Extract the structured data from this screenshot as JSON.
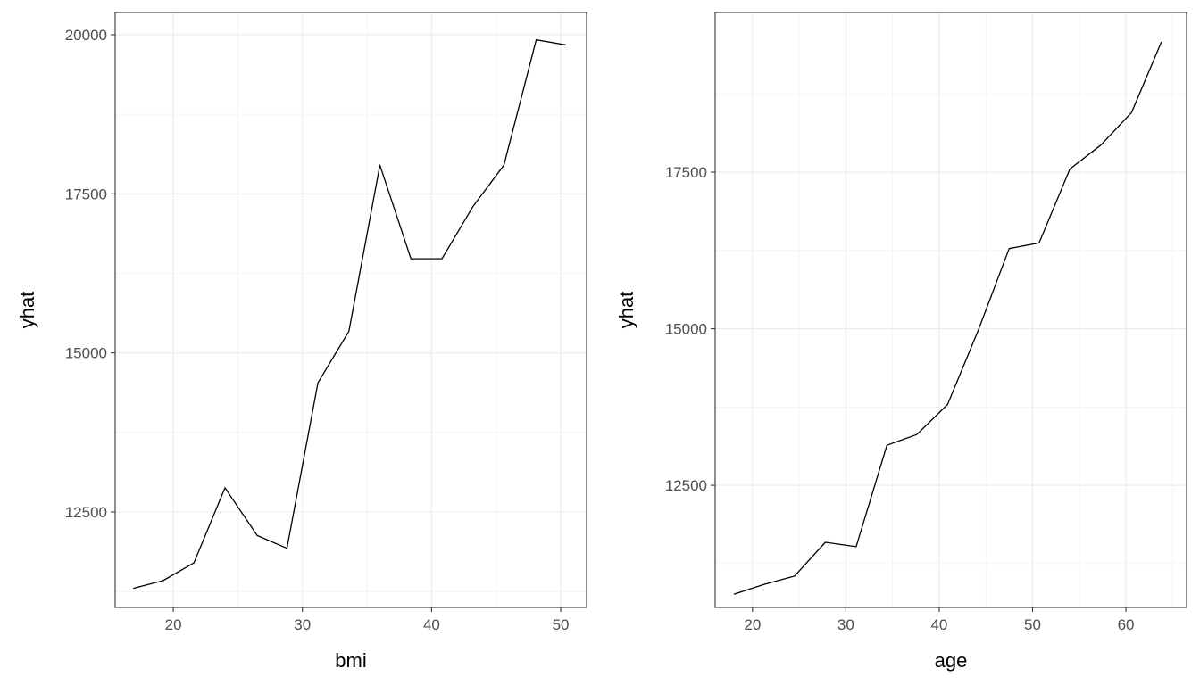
{
  "chart_data": [
    {
      "type": "line",
      "xlabel": "bmi",
      "ylabel": "yhat",
      "xlim": [
        15.5,
        52
      ],
      "ylim": [
        11000,
        20350
      ],
      "x_major_ticks": [
        20,
        30,
        40,
        50
      ],
      "y_major_ticks": [
        12500,
        15000,
        17500,
        20000
      ],
      "grid": true,
      "series": [
        {
          "x": [
            16.9,
            19.2,
            21.6,
            24.0,
            26.5,
            28.8,
            31.2,
            33.6,
            36.0,
            38.4,
            40.8,
            43.2,
            45.6,
            48.1,
            50.4
          ],
          "y": [
            11300,
            11420,
            11700,
            12880,
            12130,
            11930,
            14530,
            15340,
            17950,
            16480,
            16480,
            17300,
            17950,
            19920,
            19840
          ]
        }
      ]
    },
    {
      "type": "line",
      "xlabel": "age",
      "ylabel": "yhat",
      "xlim": [
        16,
        66.5
      ],
      "ylim": [
        10550,
        20050
      ],
      "x_major_ticks": [
        20,
        30,
        40,
        50,
        60
      ],
      "y_major_ticks": [
        12500,
        15000,
        17500
      ],
      "grid": true,
      "series": [
        {
          "x": [
            18,
            21.3,
            24.5,
            27.8,
            31.1,
            34.4,
            37.6,
            40.9,
            44.2,
            47.5,
            50.7,
            54.0,
            57.3,
            60.6,
            63.8
          ],
          "y": [
            10760,
            10920,
            11050,
            11590,
            11520,
            13140,
            13310,
            13790,
            14980,
            16280,
            16370,
            17550,
            17930,
            18450,
            19580
          ]
        }
      ]
    }
  ]
}
